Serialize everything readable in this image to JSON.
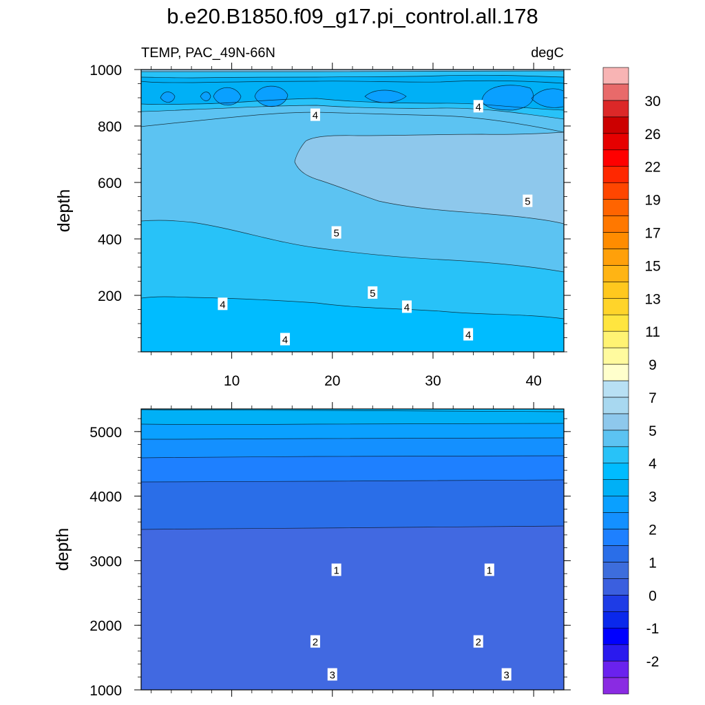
{
  "figure": {
    "title": "b.e20.B1850.f09_g17.pi_control.all.178",
    "left_string": "TEMP, PAC_49N-66N",
    "right_string": "degC"
  },
  "colorbar": {
    "colors": [
      "#8a2be2",
      "#6a22ee",
      "#2a1aee",
      "#0000ff",
      "#0a28ec",
      "#1e3ce6",
      "#3b5fdf",
      "#3d6ddc",
      "#2a6ee8",
      "#1e80ff",
      "#1490ff",
      "#0aa0ff",
      "#00b0f6",
      "#00bcff",
      "#28c2f8",
      "#5cc3f2",
      "#8ec8ec",
      "#a8d8f0",
      "#b8e0f4",
      "#ffffcc",
      "#fffa9e",
      "#fff373",
      "#ffe53f",
      "#ffd42a",
      "#ffc81e",
      "#ffb414",
      "#ffa00a",
      "#ff8c00",
      "#ff7800",
      "#ff6400",
      "#ff4600",
      "#ff2800",
      "#ff0000",
      "#e60000",
      "#cc0000",
      "#dc2828",
      "#e86a6a",
      "#f8b4b4"
    ],
    "labels": [
      "-2",
      "-1",
      "0",
      "1",
      "2",
      "3",
      "4",
      "5",
      "7",
      "9",
      "11",
      "13",
      "15",
      "17",
      "19",
      "22",
      "26",
      "30"
    ]
  },
  "chart_data": [
    {
      "type": "contour",
      "panel": "upper",
      "xlabel": "",
      "ylabel": "depth",
      "xlim": [
        1,
        43
      ],
      "ylim": [
        1000,
        0
      ],
      "x_ticks": [
        "10",
        "20",
        "30",
        "40"
      ],
      "y_ticks": [
        "200",
        "400",
        "600",
        "800",
        "1000"
      ],
      "contour_labels": [
        {
          "text": "4",
          "x": 15.3,
          "y": 45
        },
        {
          "text": "4",
          "x": 33.5,
          "y": 62
        },
        {
          "text": "4",
          "x": 9.1,
          "y": 170
        },
        {
          "text": "4",
          "x": 27.4,
          "y": 160
        },
        {
          "text": "5",
          "x": 24.0,
          "y": 210
        },
        {
          "text": "5",
          "x": 20.4,
          "y": 423
        },
        {
          "text": "5",
          "x": 39.4,
          "y": 535
        },
        {
          "text": "4",
          "x": 18.3,
          "y": 840
        },
        {
          "text": "4",
          "x": 34.5,
          "y": 870
        }
      ]
    },
    {
      "type": "contour",
      "panel": "lower",
      "xlabel": "",
      "ylabel": "depth",
      "xlim": [
        1,
        43
      ],
      "ylim": [
        5350,
        1000
      ],
      "y_ticks": [
        "1000",
        "2000",
        "3000",
        "4000",
        "5000"
      ],
      "contour_labels": [
        {
          "text": "3",
          "x": 20.0,
          "y": 1240
        },
        {
          "text": "3",
          "x": 37.3,
          "y": 1240
        },
        {
          "text": "2",
          "x": 18.3,
          "y": 1750
        },
        {
          "text": "2",
          "x": 34.5,
          "y": 1750
        },
        {
          "text": "1",
          "x": 20.4,
          "y": 2860
        },
        {
          "text": "1",
          "x": 35.6,
          "y": 2860
        }
      ]
    }
  ]
}
